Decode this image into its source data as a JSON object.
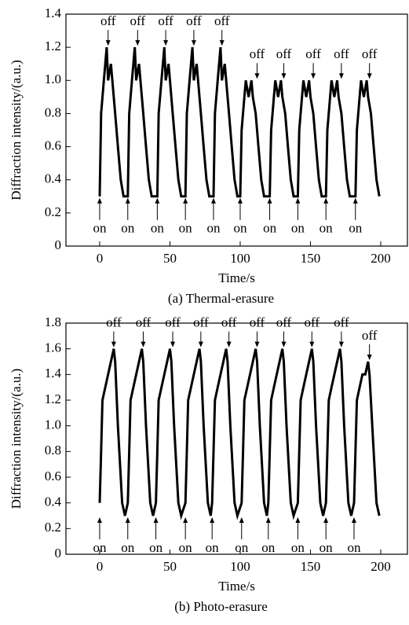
{
  "chart_data": [
    {
      "type": "line",
      "caption": "(a) Thermal-erasure",
      "xlabel": "Time/s",
      "ylabel": "Diffraction intensity/(a.u.)",
      "color": "#000000",
      "xlim": [
        -24,
        219
      ],
      "xticks": [
        0,
        50,
        100,
        150,
        200
      ],
      "ylim": [
        0,
        1.4
      ],
      "yticks": [
        0,
        0.2,
        0.4,
        0.6,
        0.8,
        {
          "value": 1,
          "label": "1.0"
        },
        1.2,
        1.4
      ],
      "x": [
        0,
        1,
        3,
        4,
        5,
        6,
        8,
        9,
        11,
        13,
        15,
        17,
        20,
        21,
        23,
        24,
        25,
        26,
        28,
        29,
        31,
        33,
        35,
        37,
        41,
        42,
        44,
        45,
        46,
        47,
        49,
        50,
        52,
        54,
        56,
        58,
        61,
        62,
        64,
        65,
        66,
        67,
        69,
        70,
        72,
        74,
        76,
        78,
        81,
        82,
        84,
        85,
        86,
        87,
        89,
        90,
        92,
        94,
        96,
        98,
        100,
        101,
        103,
        104,
        106,
        108,
        109,
        111,
        113,
        115,
        117,
        121,
        122,
        124,
        125,
        127,
        129,
        130,
        132,
        134,
        136,
        138,
        141,
        142,
        144,
        145,
        147,
        149,
        150,
        152,
        154,
        156,
        158,
        161,
        162,
        164,
        165,
        167,
        169,
        170,
        172,
        174,
        176,
        178,
        182,
        183,
        185,
        186,
        188,
        190,
        191,
        193,
        195,
        197,
        199
      ],
      "values": [
        0.3,
        0.8,
        1.0,
        1.1,
        1.2,
        1.0,
        1.1,
        1.0,
        0.8,
        0.6,
        0.4,
        0.3,
        0.3,
        0.8,
        1.0,
        1.1,
        1.2,
        1.0,
        1.1,
        1.0,
        0.8,
        0.6,
        0.4,
        0.3,
        0.3,
        0.8,
        1.0,
        1.1,
        1.2,
        1.0,
        1.1,
        1.0,
        0.8,
        0.6,
        0.4,
        0.3,
        0.3,
        0.8,
        1.0,
        1.1,
        1.2,
        1.0,
        1.1,
        1.0,
        0.8,
        0.6,
        0.4,
        0.3,
        0.3,
        0.8,
        1.0,
        1.1,
        1.2,
        1.0,
        1.1,
        1.0,
        0.8,
        0.6,
        0.4,
        0.3,
        0.3,
        0.7,
        0.9,
        1.0,
        0.9,
        1.0,
        0.9,
        0.8,
        0.6,
        0.4,
        0.3,
        0.3,
        0.7,
        0.9,
        1.0,
        0.9,
        1.0,
        0.9,
        0.8,
        0.6,
        0.4,
        0.3,
        0.3,
        0.7,
        0.9,
        1.0,
        0.9,
        1.0,
        0.9,
        0.8,
        0.6,
        0.4,
        0.3,
        0.3,
        0.7,
        0.9,
        1.0,
        0.9,
        1.0,
        0.9,
        0.8,
        0.6,
        0.4,
        0.3,
        0.3,
        0.7,
        0.9,
        1.0,
        0.9,
        1.0,
        0.9,
        0.8,
        0.6,
        0.4,
        0.3
      ],
      "annotations": [
        {
          "text": "off",
          "x": 6,
          "y": 1.2
        },
        {
          "text": "off",
          "x": 27,
          "y": 1.2
        },
        {
          "text": "off",
          "x": 47,
          "y": 1.2
        },
        {
          "text": "off",
          "x": 67,
          "y": 1.2
        },
        {
          "text": "off",
          "x": 87,
          "y": 1.2
        },
        {
          "text": "off",
          "x": 112,
          "y": 1.0
        },
        {
          "text": "off",
          "x": 131,
          "y": 1.0
        },
        {
          "text": "off",
          "x": 152,
          "y": 1.0
        },
        {
          "text": "off",
          "x": 172,
          "y": 1.0
        },
        {
          "text": "off",
          "x": 192,
          "y": 1.0
        },
        {
          "text": "on",
          "x": 0,
          "y": 0.3
        },
        {
          "text": "on",
          "x": 20,
          "y": 0.3
        },
        {
          "text": "on",
          "x": 41,
          "y": 0.3
        },
        {
          "text": "on",
          "x": 61,
          "y": 0.3
        },
        {
          "text": "on",
          "x": 81,
          "y": 0.3
        },
        {
          "text": "on",
          "x": 100,
          "y": 0.3
        },
        {
          "text": "on",
          "x": 121,
          "y": 0.3
        },
        {
          "text": "on",
          "x": 141,
          "y": 0.3
        },
        {
          "text": "on",
          "x": 161,
          "y": 0.3
        },
        {
          "text": "on",
          "x": 182,
          "y": 0.3
        }
      ]
    },
    {
      "type": "line",
      "caption": "(b) Photo-erasure",
      "xlabel": "Time/s",
      "ylabel": "Diffraction intensity/(a.u.)",
      "color": "#000000",
      "xlim": [
        -24,
        219
      ],
      "xticks": [
        0,
        50,
        100,
        150,
        200
      ],
      "ylim": [
        0,
        1.8
      ],
      "yticks": [
        0,
        0.2,
        0.4,
        0.6,
        0.8,
        {
          "value": 1,
          "label": "1.0"
        },
        1.2,
        1.4,
        1.6,
        1.8
      ],
      "x": [
        0,
        1,
        2,
        4,
        6,
        8,
        10,
        11,
        13,
        15,
        16,
        18,
        20,
        21,
        22,
        24,
        26,
        28,
        30,
        31,
        33,
        35,
        36,
        38,
        40,
        41,
        42,
        44,
        46,
        48,
        50,
        51,
        53,
        55,
        56,
        58,
        61,
        62,
        63,
        65,
        67,
        69,
        71,
        72,
        74,
        76,
        77,
        79,
        80,
        81,
        82,
        84,
        86,
        88,
        90,
        91,
        93,
        95,
        96,
        98,
        101,
        102,
        103,
        105,
        107,
        109,
        111,
        112,
        114,
        116,
        117,
        119,
        120,
        121,
        122,
        124,
        126,
        128,
        130,
        131,
        133,
        135,
        136,
        138,
        141,
        142,
        143,
        145,
        147,
        149,
        151,
        152,
        154,
        156,
        157,
        159,
        161,
        162,
        163,
        165,
        167,
        169,
        171,
        172,
        174,
        176,
        177,
        179,
        181,
        182,
        183,
        185,
        187,
        189,
        191,
        192,
        194,
        196,
        197,
        199
      ],
      "values": [
        0.4,
        0.8,
        1.2,
        1.3,
        1.4,
        1.5,
        1.6,
        1.5,
        1.0,
        0.6,
        0.4,
        0.3,
        0.4,
        0.8,
        1.2,
        1.3,
        1.4,
        1.5,
        1.6,
        1.5,
        1.0,
        0.6,
        0.4,
        0.3,
        0.4,
        0.8,
        1.2,
        1.3,
        1.4,
        1.5,
        1.6,
        1.5,
        1.0,
        0.6,
        0.4,
        0.3,
        0.4,
        0.8,
        1.2,
        1.3,
        1.4,
        1.5,
        1.6,
        1.5,
        1.0,
        0.6,
        0.4,
        0.3,
        0.4,
        0.8,
        1.2,
        1.3,
        1.4,
        1.5,
        1.6,
        1.5,
        1.0,
        0.6,
        0.4,
        0.3,
        0.4,
        0.8,
        1.2,
        1.3,
        1.4,
        1.5,
        1.6,
        1.5,
        1.0,
        0.6,
        0.4,
        0.3,
        0.4,
        0.8,
        1.2,
        1.3,
        1.4,
        1.5,
        1.6,
        1.5,
        1.0,
        0.6,
        0.4,
        0.3,
        0.4,
        0.8,
        1.2,
        1.3,
        1.4,
        1.5,
        1.6,
        1.5,
        1.0,
        0.6,
        0.4,
        0.3,
        0.4,
        0.8,
        1.2,
        1.3,
        1.4,
        1.5,
        1.6,
        1.5,
        1.0,
        0.6,
        0.4,
        0.3,
        0.4,
        0.8,
        1.2,
        1.3,
        1.4,
        1.4,
        1.5,
        1.4,
        1.0,
        0.6,
        0.4,
        0.3
      ],
      "annotations": [
        {
          "text": "off",
          "x": 10,
          "y": 1.6
        },
        {
          "text": "off",
          "x": 31,
          "y": 1.6
        },
        {
          "text": "off",
          "x": 52,
          "y": 1.6
        },
        {
          "text": "off",
          "x": 72,
          "y": 1.6
        },
        {
          "text": "off",
          "x": 92,
          "y": 1.6
        },
        {
          "text": "off",
          "x": 112,
          "y": 1.6
        },
        {
          "text": "off",
          "x": 131,
          "y": 1.6
        },
        {
          "text": "off",
          "x": 151,
          "y": 1.6
        },
        {
          "text": "off",
          "x": 172,
          "y": 1.6
        },
        {
          "text": "off",
          "x": 192,
          "y": 1.5
        },
        {
          "text": "on",
          "x": 0,
          "y": 0.3
        },
        {
          "text": "on",
          "x": 20,
          "y": 0.3
        },
        {
          "text": "on",
          "x": 40,
          "y": 0.3
        },
        {
          "text": "on",
          "x": 61,
          "y": 0.3
        },
        {
          "text": "on",
          "x": 80,
          "y": 0.3
        },
        {
          "text": "on",
          "x": 101,
          "y": 0.3
        },
        {
          "text": "on",
          "x": 120,
          "y": 0.3
        },
        {
          "text": "on",
          "x": 141,
          "y": 0.3
        },
        {
          "text": "on",
          "x": 161,
          "y": 0.3
        },
        {
          "text": "on",
          "x": 181,
          "y": 0.3
        }
      ]
    }
  ]
}
